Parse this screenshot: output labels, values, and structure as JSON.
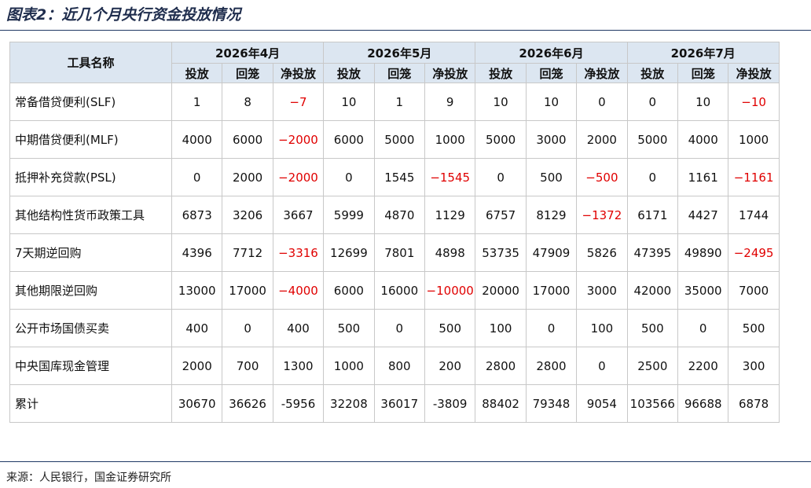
{
  "title": "图表2：近几个月央行资金投放情况",
  "table": {
    "first_header": "工具名称",
    "months": [
      "2026年4月",
      "2026年5月",
      "2026年6月",
      "2026年7月"
    ],
    "subheaders": [
      "投放",
      "回笼",
      "净投放",
      "投放",
      "回笼",
      "净投放",
      "投放",
      "回笼",
      "净投放",
      "投放",
      "回笼",
      "净投放"
    ],
    "rows": [
      [
        "常备借贷便利(SLF)",
        "1",
        "8",
        "−7",
        "10",
        "1",
        "9",
        "10",
        "10",
        "0",
        "0",
        "10",
        "−10"
      ],
      [
        "中期借贷便利(MLF)",
        "4000",
        "6000",
        "−2000",
        "6000",
        "5000",
        "1000",
        "5000",
        "3000",
        "2000",
        "5000",
        "4000",
        "1000"
      ],
      [
        "抵押补充贷款(PSL)",
        "0",
        "2000",
        "−2000",
        "0",
        "1545",
        "−1545",
        "0",
        "500",
        "−500",
        "0",
        "1161",
        "−1161"
      ],
      [
        "其他结构性货币政策工具",
        "6873",
        "3206",
        "3667",
        "5999",
        "4870",
        "1129",
        "6757",
        "8129",
        "−1372",
        "6171",
        "4427",
        "1744"
      ],
      [
        "7天期逆回购",
        "4396",
        "7712",
        "−3316",
        "12699",
        "7801",
        "4898",
        "53735",
        "47909",
        "5826",
        "47395",
        "49890",
        "−2495"
      ],
      [
        "其他期限逆回购",
        "13000",
        "17000",
        "−4000",
        "6000",
        "16000",
        "−10000",
        "20000",
        "17000",
        "3000",
        "42000",
        "35000",
        "7000"
      ],
      [
        "公开市场国债买卖",
        "400",
        "0",
        "400",
        "500",
        "0",
        "500",
        "100",
        "0",
        "100",
        "500",
        "0",
        "500"
      ],
      [
        "中央国库现金管理",
        "2000",
        "700",
        "1300",
        "1000",
        "800",
        "200",
        "2800",
        "2800",
        "0",
        "2500",
        "2200",
        "300"
      ],
      [
        "累计",
        "30670",
        "36626",
        "-5956",
        "32208",
        "36017",
        "-3809",
        "88402",
        "79348",
        "9054",
        "103566",
        "96688",
        "6878"
      ]
    ]
  },
  "source": "来源：人民银行，国金证券研究所"
}
